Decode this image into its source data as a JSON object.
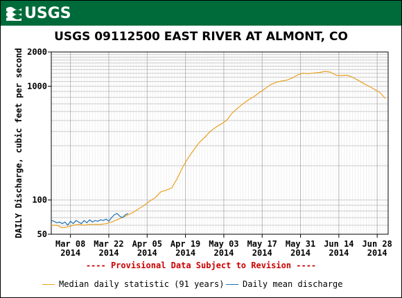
{
  "header": {
    "logo_text": "USGS"
  },
  "chart_data": {
    "type": "line",
    "title": "USGS 09112500 EAST RIVER AT ALMONT, CO",
    "ylabel": "DAILY Discharge, cubic feet per second",
    "xlabel": "",
    "yscale": "log",
    "ylim": [
      50,
      2000
    ],
    "x_start": "2014-03-01",
    "x_end": "2014-07-02",
    "x_ticks": [
      {
        "line1": "Mar 08",
        "line2": "2014",
        "date": "2014-03-08"
      },
      {
        "line1": "Mar 22",
        "line2": "2014",
        "date": "2014-03-22"
      },
      {
        "line1": "Apr 05",
        "line2": "2014",
        "date": "2014-04-05"
      },
      {
        "line1": "Apr 19",
        "line2": "2014",
        "date": "2014-04-19"
      },
      {
        "line1": "May 03",
        "line2": "2014",
        "date": "2014-05-03"
      },
      {
        "line1": "May 17",
        "line2": "2014",
        "date": "2014-05-17"
      },
      {
        "line1": "May 31",
        "line2": "2014",
        "date": "2014-05-31"
      },
      {
        "line1": "Jun 14",
        "line2": "2014",
        "date": "2014-06-14"
      },
      {
        "line1": "Jun 28",
        "line2": "2014",
        "date": "2014-06-28"
      }
    ],
    "y_tick_labels": [
      {
        "label": "50",
        "value": 50
      },
      {
        "label": "100",
        "value": 100
      },
      {
        "label": "1000",
        "value": 1000
      },
      {
        "label": "2000",
        "value": 2000
      }
    ],
    "grid": true,
    "legend_position": "bottom",
    "series": [
      {
        "name": "Median daily statistic (91 years)",
        "color": "#e8a020",
        "points": [
          [
            "2014-03-01",
            60
          ],
          [
            "2014-03-03",
            60
          ],
          [
            "2014-03-05",
            57
          ],
          [
            "2014-03-07",
            58
          ],
          [
            "2014-03-09",
            60
          ],
          [
            "2014-03-11",
            61
          ],
          [
            "2014-03-13",
            60
          ],
          [
            "2014-03-15",
            61
          ],
          [
            "2014-03-17",
            61
          ],
          [
            "2014-03-19",
            61
          ],
          [
            "2014-03-21",
            62
          ],
          [
            "2014-03-23",
            64
          ],
          [
            "2014-03-25",
            67
          ],
          [
            "2014-03-27",
            70
          ],
          [
            "2014-03-29",
            74
          ],
          [
            "2014-03-31",
            78
          ],
          [
            "2014-04-02",
            84
          ],
          [
            "2014-04-04",
            90
          ],
          [
            "2014-04-06",
            98
          ],
          [
            "2014-04-08",
            105
          ],
          [
            "2014-04-10",
            118
          ],
          [
            "2014-04-12",
            122
          ],
          [
            "2014-04-14",
            128
          ],
          [
            "2014-04-16",
            155
          ],
          [
            "2014-04-18",
            195
          ],
          [
            "2014-04-20",
            235
          ],
          [
            "2014-04-22",
            275
          ],
          [
            "2014-04-24",
            320
          ],
          [
            "2014-04-26",
            355
          ],
          [
            "2014-04-28",
            400
          ],
          [
            "2014-04-30",
            435
          ],
          [
            "2014-05-02",
            465
          ],
          [
            "2014-05-04",
            500
          ],
          [
            "2014-05-06",
            580
          ],
          [
            "2014-05-08",
            640
          ],
          [
            "2014-05-10",
            700
          ],
          [
            "2014-05-12",
            760
          ],
          [
            "2014-05-14",
            810
          ],
          [
            "2014-05-16",
            880
          ],
          [
            "2014-05-18",
            950
          ],
          [
            "2014-05-20",
            1030
          ],
          [
            "2014-05-22",
            1080
          ],
          [
            "2014-05-24",
            1110
          ],
          [
            "2014-05-26",
            1130
          ],
          [
            "2014-05-28",
            1180
          ],
          [
            "2014-05-30",
            1260
          ],
          [
            "2014-06-01",
            1300
          ],
          [
            "2014-06-03",
            1290
          ],
          [
            "2014-06-05",
            1310
          ],
          [
            "2014-06-07",
            1320
          ],
          [
            "2014-06-09",
            1350
          ],
          [
            "2014-06-11",
            1330
          ],
          [
            "2014-06-13",
            1250
          ],
          [
            "2014-06-15",
            1240
          ],
          [
            "2014-06-17",
            1250
          ],
          [
            "2014-06-19",
            1200
          ],
          [
            "2014-06-21",
            1130
          ],
          [
            "2014-06-23",
            1060
          ],
          [
            "2014-06-25",
            1000
          ],
          [
            "2014-06-27",
            940
          ],
          [
            "2014-06-29",
            880
          ],
          [
            "2014-07-01",
            780
          ]
        ]
      },
      {
        "name": "Daily mean discharge",
        "color": "#1f6fb4",
        "points": [
          [
            "2014-03-01",
            66
          ],
          [
            "2014-03-02",
            65
          ],
          [
            "2014-03-03",
            63
          ],
          [
            "2014-03-04",
            64
          ],
          [
            "2014-03-05",
            62
          ],
          [
            "2014-03-06",
            64
          ],
          [
            "2014-03-07",
            60
          ],
          [
            "2014-03-08",
            65
          ],
          [
            "2014-03-09",
            62
          ],
          [
            "2014-03-10",
            66
          ],
          [
            "2014-03-11",
            64
          ],
          [
            "2014-03-12",
            62
          ],
          [
            "2014-03-13",
            66
          ],
          [
            "2014-03-14",
            63
          ],
          [
            "2014-03-15",
            67
          ],
          [
            "2014-03-16",
            64
          ],
          [
            "2014-03-17",
            66
          ],
          [
            "2014-03-18",
            65
          ],
          [
            "2014-03-19",
            67
          ],
          [
            "2014-03-20",
            66
          ],
          [
            "2014-03-21",
            68
          ],
          [
            "2014-03-22",
            65
          ],
          [
            "2014-03-23",
            70
          ],
          [
            "2014-03-24",
            74
          ],
          [
            "2014-03-25",
            76
          ],
          [
            "2014-03-26",
            72
          ],
          [
            "2014-03-27",
            70
          ],
          [
            "2014-03-28",
            74
          ],
          [
            "2014-03-29",
            76
          ]
        ]
      }
    ]
  },
  "provisional_note": "---- Provisional Data Subject to Revision ----"
}
